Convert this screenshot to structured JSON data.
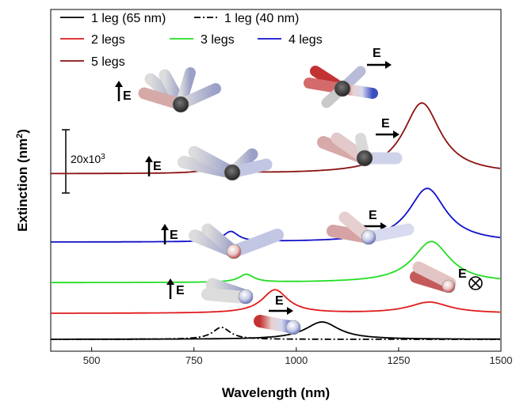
{
  "chart_data": {
    "type": "line",
    "xlabel": "Wavelength (nm)",
    "ylabel": "Extinction (nm",
    "ylabel_sup": "2",
    "ylabel_end": ")",
    "xlim": [
      400,
      1500
    ],
    "xticks": [
      500,
      750,
      1000,
      1250,
      1500
    ],
    "yunits_visible": false,
    "grid": false,
    "legend_position": "top-left",
    "scale_bar": {
      "label": "20x10",
      "label_sup": "3",
      "value": 20000
    },
    "series": [
      {
        "name": "1 leg (65 nm)",
        "color": "#000000",
        "dash": "solid",
        "offset": 0,
        "peaks": [
          {
            "x": 1063,
            "y": 5500,
            "width": 50
          }
        ]
      },
      {
        "name": "1 leg (40 nm)",
        "color": "#000000",
        "dash": "dashdot",
        "offset": 0,
        "peaks": [
          {
            "x": 817,
            "y": 3800,
            "width": 26
          }
        ]
      },
      {
        "name": "2 legs",
        "color": "#e11b1b",
        "dash": "solid",
        "offset": 8200,
        "peaks": [
          {
            "x": 948,
            "y": 7400,
            "width": 38
          },
          {
            "x": 1325,
            "y": 3500,
            "width": 60
          }
        ]
      },
      {
        "name": "3 legs",
        "color": "#22dd22",
        "dash": "solid",
        "offset": 17900,
        "peaks": [
          {
            "x": 878,
            "y": 2500,
            "width": 22
          },
          {
            "x": 1330,
            "y": 13000,
            "width": 55
          }
        ]
      },
      {
        "name": "4 legs",
        "color": "#1111cc",
        "dash": "solid",
        "offset": 30700,
        "peaks": [
          {
            "x": 840,
            "y": 3200,
            "width": 22
          },
          {
            "x": 1320,
            "y": 17000,
            "width": 55
          }
        ]
      },
      {
        "name": "5 legs",
        "color": "#8b1010",
        "dash": "solid",
        "offset": 52300,
        "peaks": [
          {
            "x": 810,
            "y": 3300,
            "width": 25
          },
          {
            "x": 1307,
            "y": 22400,
            "width": 55
          }
        ]
      }
    ],
    "field_labels": [
      {
        "text": "E",
        "arrow": "up"
      },
      {
        "text": "E",
        "arrow": "right"
      },
      {
        "text": "E",
        "arrow": "up"
      },
      {
        "text": "E",
        "arrow": "right"
      },
      {
        "text": "E",
        "arrow": "up"
      },
      {
        "text": "E",
        "arrow": "right"
      },
      {
        "text": "E",
        "arrow": "up"
      },
      {
        "text": "E",
        "arrow": "out-of-plane"
      },
      {
        "text": "E",
        "arrow": "right"
      }
    ]
  }
}
